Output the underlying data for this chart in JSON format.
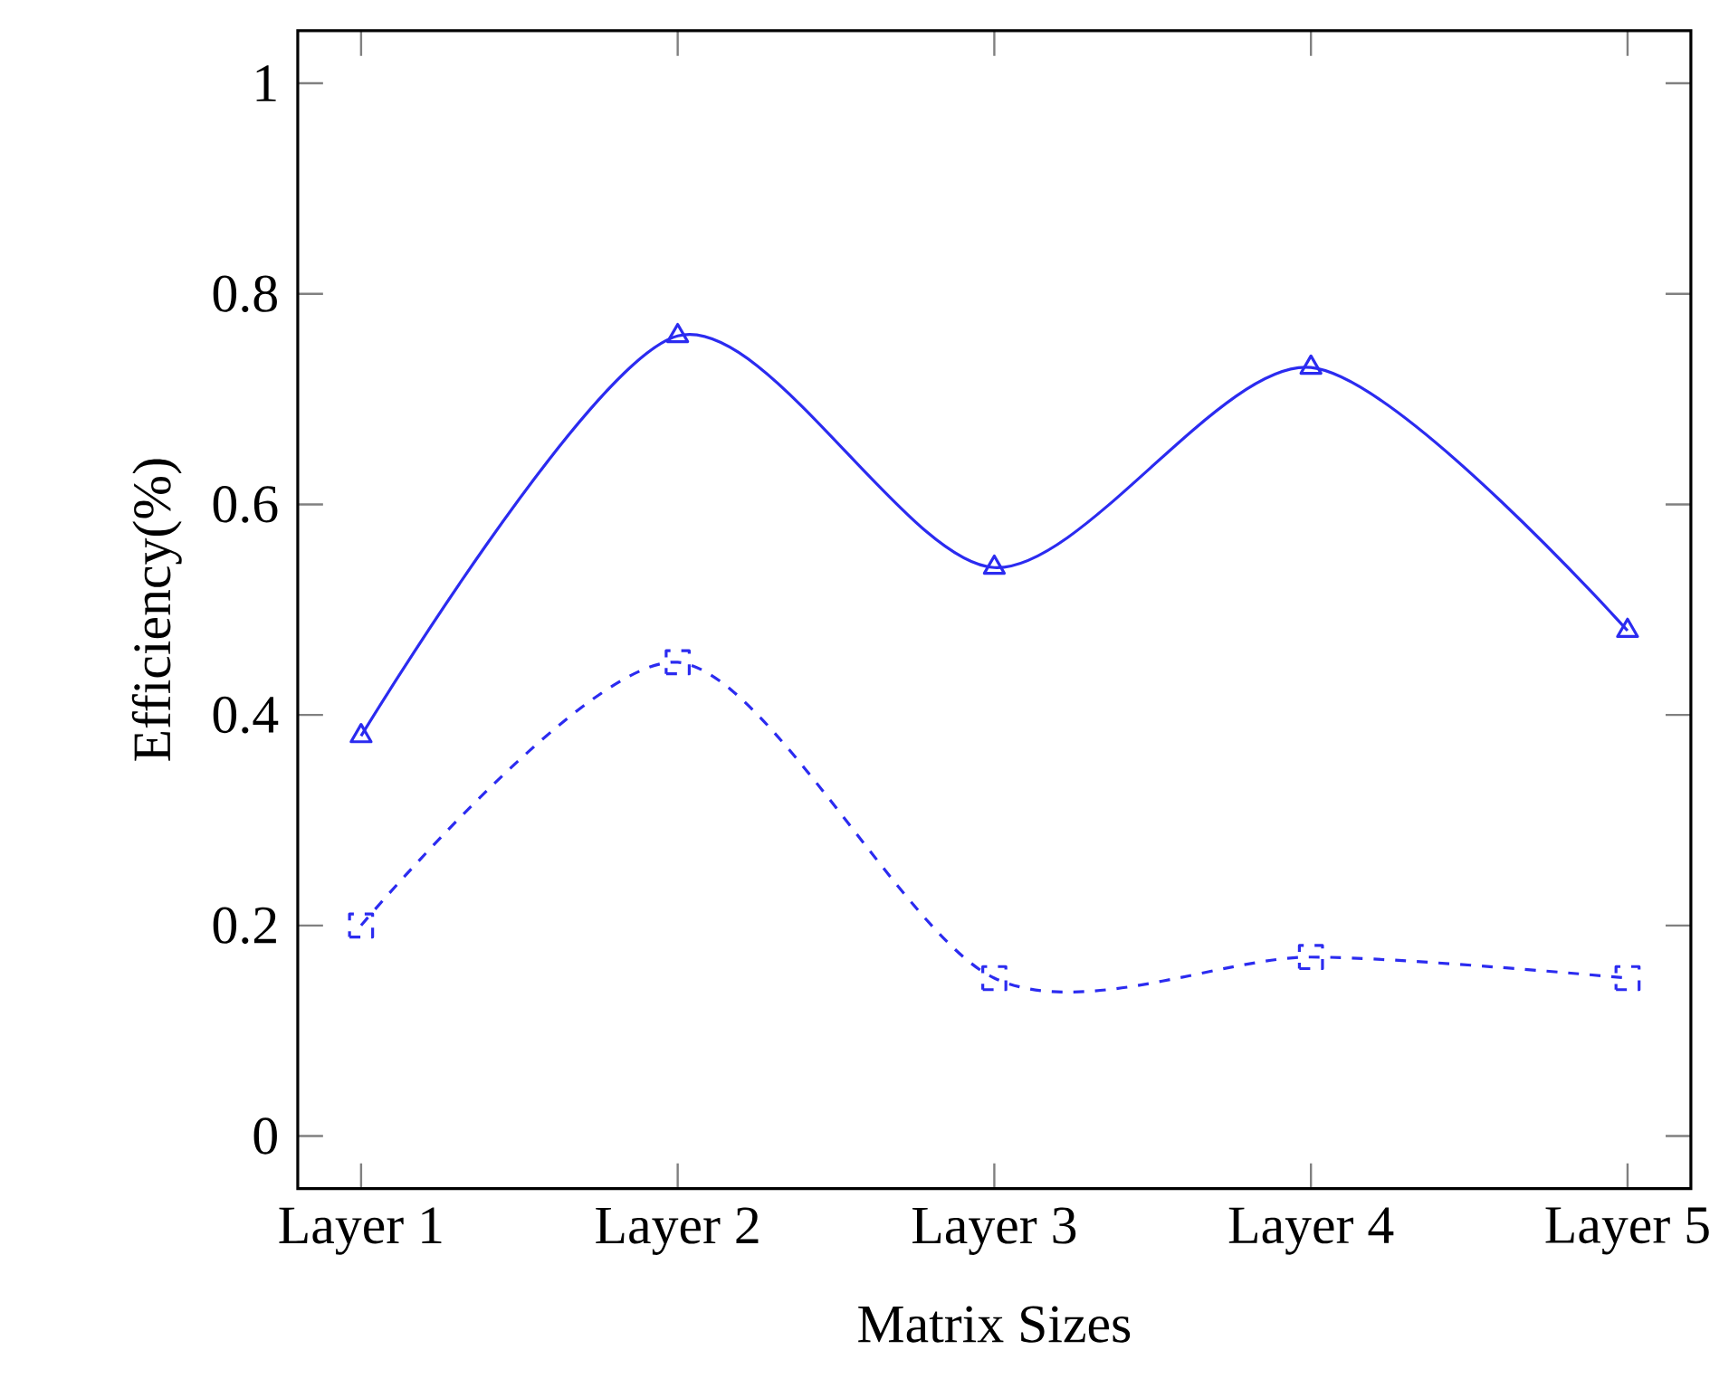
{
  "chart_data": {
    "type": "line",
    "xlabel": "Matrix Sizes",
    "ylabel": "Efficiency(%)",
    "categories": [
      "Layer 1",
      "Layer 2",
      "Layer 3",
      "Layer 4",
      "Layer 5"
    ],
    "series": [
      {
        "color": "#2b2bf0",
        "marker": "triangle",
        "line_style": "solid",
        "values": [
          0.38,
          0.76,
          0.54,
          0.73,
          0.48
        ]
      },
      {
        "color": "#2b2bf0",
        "marker": "square",
        "line_style": "dashed",
        "values": [
          0.2,
          0.45,
          0.15,
          0.17,
          0.15
        ]
      }
    ],
    "ylim": [
      -0.05,
      1.05
    ],
    "yticks": [
      0,
      0.2,
      0.4,
      0.6,
      0.8,
      1
    ],
    "grid": false
  }
}
